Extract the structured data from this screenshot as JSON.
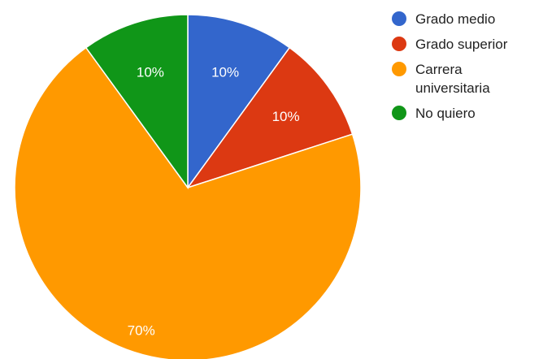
{
  "chart_data": {
    "type": "pie",
    "categories": [
      "Grado medio",
      "Grado superior",
      "Carrera universitaria",
      "No quiero"
    ],
    "values": [
      10,
      10,
      70,
      10
    ],
    "labels": [
      "10%",
      "10%",
      "70%",
      "10%"
    ],
    "colors": [
      "#3366cc",
      "#dc3912",
      "#ff9900",
      "#109618"
    ],
    "start_angle_deg": 0,
    "legend_position": "right",
    "title": ""
  },
  "legend": {
    "items": [
      {
        "label": "Grado medio",
        "color": "#3366cc"
      },
      {
        "label": "Grado superior",
        "color": "#dc3912"
      },
      {
        "label": "Carrera\nuniversitaria",
        "color": "#ff9900"
      },
      {
        "label": "No quiero",
        "color": "#109618"
      }
    ]
  }
}
